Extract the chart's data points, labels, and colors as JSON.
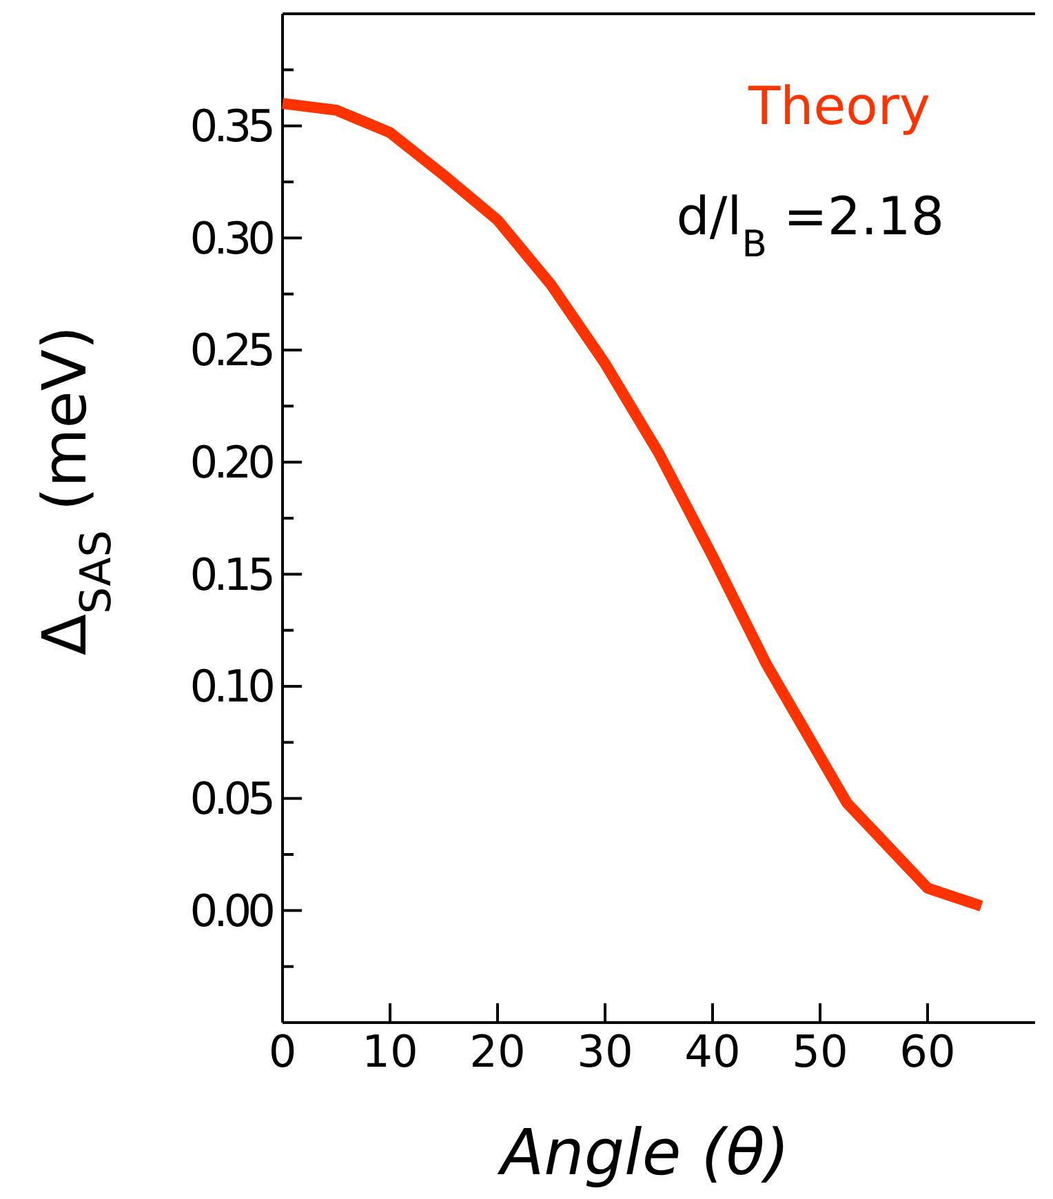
{
  "chart_data": {
    "type": "line",
    "xlabel": "Angle (θ)",
    "ylabel": "Δ$_{SAS}$ (meV)",
    "xlim": [
      0,
      70
    ],
    "ylim": [
      -0.05,
      0.4
    ],
    "xticks": [
      0,
      10,
      20,
      30,
      40,
      50,
      60
    ],
    "yticks": [
      {
        "value": 0,
        "label": "0.00"
      },
      0.05,
      {
        "value": 0.1,
        "label": "0.10"
      },
      0.15,
      {
        "value": 0.2,
        "label": "0.20"
      },
      0.25,
      {
        "value": 0.3,
        "label": "0.30"
      },
      0.35,
      {
        "value": -0.025,
        "label": null
      },
      {
        "value": 0.025,
        "label": null
      },
      {
        "value": 0.075,
        "label": null
      },
      {
        "value": 0.125,
        "label": null
      },
      {
        "value": 0.175,
        "label": null
      },
      {
        "value": 0.225,
        "label": null
      },
      {
        "value": 0.275,
        "label": null
      },
      {
        "value": 0.325,
        "label": null
      },
      {
        "value": 0.375,
        "label": null
      }
    ],
    "grid": false,
    "marker": "none",
    "line_style": "solid",
    "annotations": [
      "d/l$_{B}$ =2.18"
    ],
    "series": [
      {
        "name": "Theory",
        "color": "#ff3300",
        "x": [
          0,
          5,
          10,
          15,
          20,
          25,
          30,
          35,
          40,
          45,
          52.5,
          60,
          65
        ],
        "values": [
          0.36,
          0.357,
          0.347,
          0.328,
          0.308,
          0.279,
          0.244,
          0.204,
          0.158,
          0.11,
          0.048,
          0.01,
          0.002
        ]
      }
    ]
  }
}
